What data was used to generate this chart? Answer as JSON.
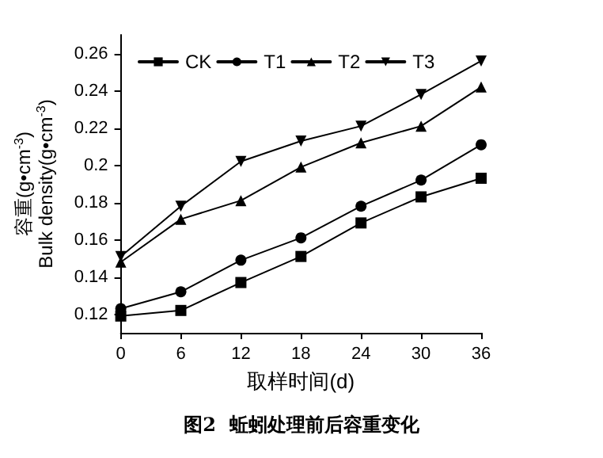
{
  "chart_data": {
    "type": "line",
    "xlabel": "取样时间(d)",
    "ylabel": "容重(g•cm$^{-3}$)\nBulk density(g•cm$^{-3}$)",
    "annotations": [
      "图2  蚯蚓处理前后容重变化"
    ],
    "x": [
      0,
      6,
      12,
      18,
      24,
      30,
      36
    ],
    "xlim": [
      0,
      36
    ],
    "xticks": [
      0,
      6,
      12,
      18,
      24,
      30,
      36
    ],
    "ylim": [
      0.11,
      0.27
    ],
    "yticks": [
      0.12,
      0.14,
      0.16,
      0.18,
      0.2,
      0.22,
      0.24,
      0.26
    ],
    "grid": false,
    "legend": "top",
    "line_style": "solid",
    "series": [
      {
        "name": "CK",
        "color": "#000000",
        "marker": "square",
        "values": [
          0.119,
          0.122,
          0.137,
          0.151,
          0.169,
          0.183,
          0.193
        ]
      },
      {
        "name": "T1",
        "color": "#000000",
        "marker": "circle",
        "values": [
          0.123,
          0.132,
          0.149,
          0.161,
          0.178,
          0.192,
          0.211
        ]
      },
      {
        "name": "T2",
        "color": "#000000",
        "marker": "triangle",
        "values": [
          0.148,
          0.171,
          0.181,
          0.199,
          0.212,
          0.221,
          0.242
        ]
      },
      {
        "name": "T3",
        "color": "#000000",
        "marker": "triangle-down",
        "values": [
          0.151,
          0.178,
          0.202,
          0.213,
          0.221,
          0.238,
          0.256
        ]
      }
    ]
  }
}
